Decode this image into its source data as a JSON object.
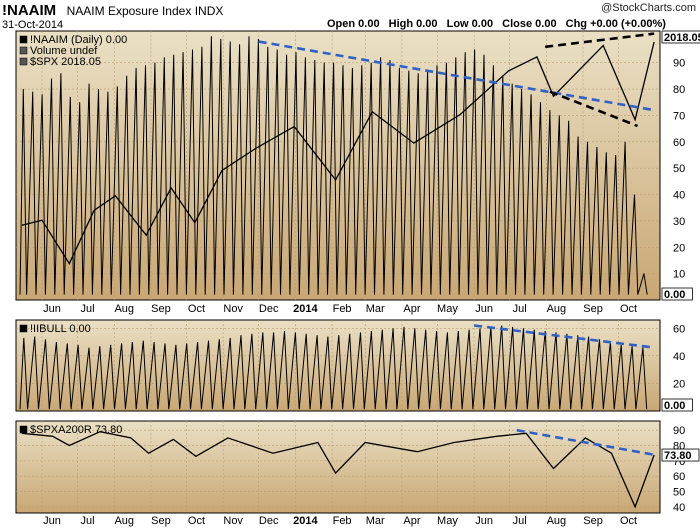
{
  "header": {
    "symbol": "!NAAIM",
    "name": "NAAIM Exposure Index",
    "exchange": "INDX",
    "date": "31-Oct-2014",
    "ohlc": {
      "open": "Open 0.00",
      "high": "High 0.00",
      "low": "Low 0.00",
      "close": "Close 0.00",
      "chg": "Chg +0.00 (+0.00%)"
    },
    "watermark": "@StockCharts.com"
  },
  "chart_data": [
    {
      "type": "line",
      "panel": "main",
      "legend": [
        "!NAAIM (Daily) 0.00",
        "Volume undef",
        "$SPX 2018.05"
      ],
      "yticks": [
        10,
        20,
        30,
        40,
        50,
        60,
        70,
        80,
        90
      ],
      "ylim": [
        0,
        102
      ],
      "last_labels": [
        "2018.05",
        "0.00"
      ],
      "series": [
        {
          "name": "!NAAIM",
          "style": "oscillating weekly spikes",
          "peaks": [
            80,
            79,
            78,
            84,
            86,
            77,
            75,
            82,
            80,
            79,
            81,
            85,
            88,
            89,
            90,
            92,
            93,
            94,
            95,
            96,
            100,
            99,
            98,
            97,
            100,
            99,
            96,
            95,
            93,
            94,
            92,
            91,
            90,
            90,
            89,
            88,
            89,
            90,
            92,
            91,
            88,
            87,
            86,
            87,
            89,
            90,
            92,
            94,
            95,
            93,
            89,
            85,
            82,
            80,
            78,
            75,
            72,
            70,
            68,
            62,
            60,
            58,
            56,
            55,
            60,
            40,
            10
          ]
        },
        {
          "name": "$SPX",
          "x": [
            "2013-05-15",
            "2013-06-01",
            "2013-06-24",
            "2013-07-15",
            "2013-08-02",
            "2013-08-28",
            "2013-09-18",
            "2013-10-08",
            "2013-10-31",
            "2013-11-29",
            "2013-12-31",
            "2014-02-04",
            "2014-03-07",
            "2014-04-11",
            "2014-05-20",
            "2014-06-30",
            "2014-07-24",
            "2014-08-07",
            "2014-09-18",
            "2014-10-15",
            "2014-10-31"
          ],
          "values": [
            1650,
            1660,
            1573,
            1680,
            1709,
            1630,
            1725,
            1655,
            1760,
            1805,
            1848,
            1741,
            1878,
            1815,
            1872,
            1960,
            1988,
            1909,
            2011,
            1862,
            2018.05
          ]
        }
      ],
      "trendlines": [
        {
          "from": [
            "2013-12-01",
            98
          ],
          "to": [
            "2014-10-31",
            72
          ]
        },
        {
          "from": [
            "2014-07-31",
            96
          ],
          "to": [
            "2014-10-31",
            101
          ]
        },
        {
          "from": [
            "2014-08-04",
            79
          ],
          "to": [
            "2014-10-17",
            66
          ]
        }
      ]
    },
    {
      "type": "line",
      "panel": "!IIBULL",
      "legend": [
        "!IIBULL 0.00"
      ],
      "yticks": [
        20,
        40,
        60
      ],
      "ylim": [
        0,
        66
      ],
      "last_labels": [
        "0.00"
      ],
      "series": [
        {
          "name": "!IIBULL",
          "style": "oscillating weekly spikes",
          "peaks": [
            53,
            54,
            52,
            50,
            49,
            48,
            46,
            47,
            48,
            49,
            50,
            51,
            50,
            49,
            48,
            49,
            50,
            51,
            52,
            53,
            55,
            56,
            57,
            57,
            58,
            57,
            56,
            55,
            54,
            55,
            56,
            57,
            58,
            59,
            60,
            61,
            60,
            59,
            58,
            57,
            58,
            59,
            60,
            61,
            62,
            61,
            60,
            59,
            58,
            57,
            56,
            55,
            54,
            52,
            50,
            48,
            47,
            46
          ]
        }
      ],
      "trendlines": [
        {
          "from": [
            "2014-06-01",
            62
          ],
          "to": [
            "2014-10-31",
            46
          ]
        }
      ]
    },
    {
      "type": "line",
      "panel": "$SPXA200R",
      "legend": [
        "$SPXA200R 73.80"
      ],
      "yticks": [
        40,
        50,
        60,
        70,
        80,
        90
      ],
      "ylim": [
        36,
        96
      ],
      "last_labels": [
        "73.80"
      ],
      "series": [
        {
          "name": "$SPXA200R",
          "x": [
            "2013-05-15",
            "2013-06-10",
            "2013-06-24",
            "2013-07-20",
            "2013-08-15",
            "2013-08-30",
            "2013-09-20",
            "2013-10-09",
            "2013-11-05",
            "2013-12-13",
            "2014-01-20",
            "2014-02-04",
            "2014-03-01",
            "2014-04-14",
            "2014-05-15",
            "2014-06-20",
            "2014-07-15",
            "2014-08-07",
            "2014-09-03",
            "2014-09-25",
            "2014-10-15",
            "2014-10-31"
          ],
          "values": [
            88,
            86,
            80,
            89,
            85,
            75,
            84,
            73,
            85,
            75,
            82,
            62,
            82,
            76,
            82,
            86,
            88,
            65,
            85,
            75,
            40,
            73.8
          ]
        }
      ],
      "trendlines": [
        {
          "from": [
            "2014-07-07",
            90
          ],
          "to": [
            "2014-10-31",
            74
          ]
        }
      ]
    }
  ],
  "axis": {
    "months": [
      {
        "label": "Jun",
        "date": "2013-06-01"
      },
      {
        "label": "Jul",
        "date": "2013-07-01"
      },
      {
        "label": "Aug",
        "date": "2013-08-01"
      },
      {
        "label": "Sep",
        "date": "2013-09-01"
      },
      {
        "label": "Oct",
        "date": "2013-10-01"
      },
      {
        "label": "Nov",
        "date": "2013-11-01"
      },
      {
        "label": "Dec",
        "date": "2013-12-01"
      },
      {
        "label": "2014",
        "date": "2014-01-01",
        "bold": true
      },
      {
        "label": "Feb",
        "date": "2014-02-01"
      },
      {
        "label": "Mar",
        "date": "2014-03-01"
      },
      {
        "label": "Apr",
        "date": "2014-04-01"
      },
      {
        "label": "May",
        "date": "2014-05-01"
      },
      {
        "label": "Jun",
        "date": "2014-06-01"
      },
      {
        "label": "Jul",
        "date": "2014-07-01"
      },
      {
        "label": "Aug",
        "date": "2014-08-01"
      },
      {
        "label": "Sep",
        "date": "2014-09-01"
      },
      {
        "label": "Oct",
        "date": "2014-10-01"
      }
    ],
    "xlim": [
      "2013-05-10",
      "2014-11-05"
    ]
  },
  "colors": {
    "panel_top": "#eae0c5",
    "panel_bottom": "#c9a774",
    "trend_blue": "#2f62c9",
    "trend_black": "#000000",
    "line": "#000000"
  }
}
